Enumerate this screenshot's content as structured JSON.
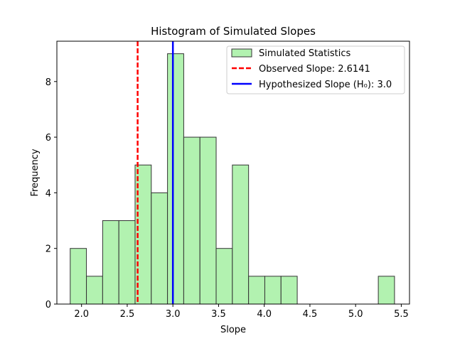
{
  "chart_data": {
    "type": "bar",
    "title": "Histogram of Simulated Slopes",
    "xlabel": "Slope",
    "ylabel": "Frequency",
    "xlim": [
      1.73,
      5.59
    ],
    "ylim": [
      0,
      9.45
    ],
    "xticks": [
      2.0,
      2.5,
      3.0,
      3.5,
      4.0,
      4.5,
      5.0,
      5.5
    ],
    "xtick_labels": [
      "2.0",
      "2.5",
      "3.0",
      "3.5",
      "4.0",
      "4.5",
      "5.0",
      "5.5"
    ],
    "yticks": [
      0,
      2,
      4,
      6,
      8
    ],
    "ytick_labels": [
      "0",
      "2",
      "4",
      "6",
      "8"
    ],
    "grid": false,
    "legend_position": "top-right",
    "bins": {
      "start": 1.876,
      "width": 0.1775,
      "counts": [
        2,
        1,
        3,
        3,
        5,
        4,
        9,
        6,
        6,
        2,
        5,
        1,
        1,
        1,
        0,
        0,
        0,
        0,
        0,
        1
      ]
    },
    "series": [
      {
        "name": "Simulated Statistics",
        "kind": "histogram",
        "color": "#b2f2b0",
        "edge_color": "#333333"
      }
    ],
    "reference_lines": [
      {
        "name": "Observed Slope: 2.6141",
        "x": 2.6141,
        "color": "#ff0000",
        "style": "dashed"
      },
      {
        "name": "Hypothesized Slope (H₀): 3.0",
        "x": 3.0,
        "color": "#0000ff",
        "style": "solid"
      }
    ]
  }
}
